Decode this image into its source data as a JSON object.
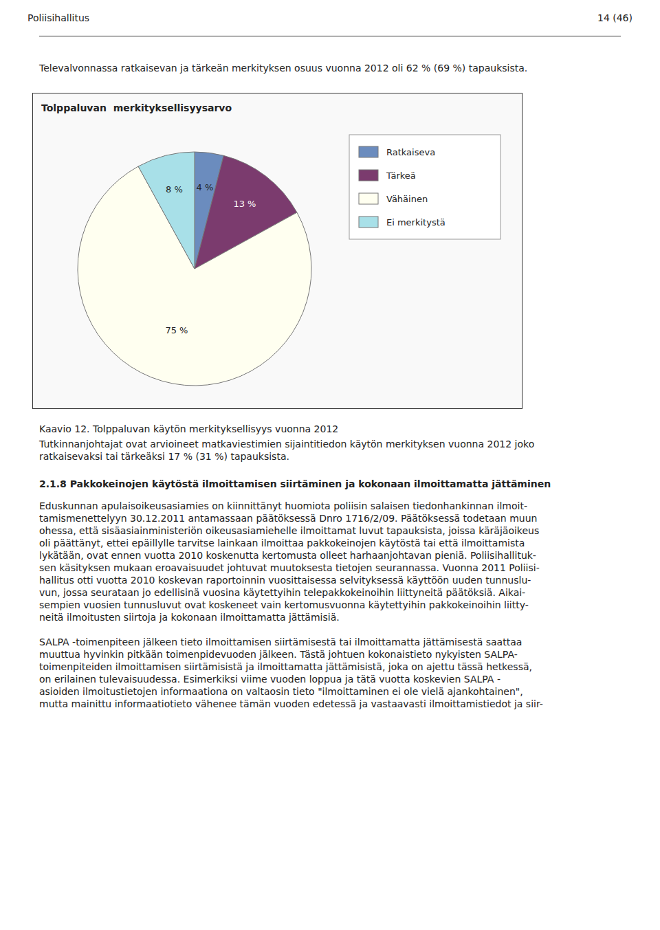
{
  "header_text": "Poliisihallitus",
  "page_number": "14 (46)",
  "intro_text": "Televalvonnassa ratkaisevan ja tärkeän merkityksen osuus vuonna 2012 oli 62 % (69 %) tapauksista.",
  "chart_data": {
    "type": "pie",
    "title": "Tolppaluvan  merkityksellisyysarvo",
    "categories": [
      "Ratkaiseva",
      "Tärkeä",
      "Vähäinen",
      "Ei merkitystä"
    ],
    "values": [
      4,
      13,
      75,
      8
    ],
    "value_labels": [
      "4 %",
      "13 %",
      "75 %",
      "8 %"
    ],
    "colors": [
      "#6B8CBE",
      "#7B3B6E",
      "#FFFFF0",
      "#A8E0E8"
    ],
    "data_labels": true,
    "legend": "right"
  },
  "caption_title": "Kaavio 12. Tolppaluvan käytön merkityksellisyys vuonna 2012",
  "caption_body": [
    "Tutkinnanjohtajat ovat arvioineet matkaviestimien sijaintitiedon käytön merkityksen vuonna 2012 joko",
    "ratkaisevaksi tai tärkeäksi 17 % (31 %) tapauksista."
  ],
  "section_title": "2.1.8 Pakkokeinojen käytöstä ilmoittamisen siirtäminen ja kokonaan ilmoittamatta jättäminen",
  "paragraphs": [
    [
      "Eduskunnan apulaisoikeusasiamies on kiinnittänyt huomiota poliisin salaisen tiedonhankinnan ilmoit-",
      "tamismenettelyyn 30.12.2011 antamassaan päätöksessä Dnro 1716/2/09. Päätöksessä todetaan muun",
      "ohessa, että sisäasiainministeriön oikeusasiamiehelle ilmoittamat luvut tapauksista, joissa käräjäoikeus",
      "oli päättänyt, ettei epäillylle tarvitse lainkaan ilmoittaa pakkokeinojen käytöstä tai että ilmoittamista",
      "lykätään, ovat ennen vuotta 2010 koskenutta kertomusta olleet harhaanjohtavan pieniä. Poliisihallituk-",
      "sen käsityksen mukaan eroavaisuudet johtuvat muutoksesta tietojen seurannassa. Vuonna 2011 Poliisi-",
      "hallitus otti vuotta 2010 koskevan raportoinnin vuosittaisessa selvityksessä käyttöön uuden tunnuslu-",
      "vun, jossa seurataan jo edellisinä vuosina käytettyihin telepakkokeinoihin liittyneitä päätöksiä. Aikai-",
      "sempien vuosien tunnusluvut ovat koskeneet vain kertomusvuonna käytettyihin pakkokeinoihin liitty-",
      "neitä ilmoitusten siirtoja ja kokonaan ilmoittamatta jättämisiä."
    ],
    [
      "SALPA -toimenpiteen jälkeen tieto ilmoittamisen siirtämisestä tai ilmoittamatta jättämisestä saattaa",
      "muuttua hyvinkin pitkään toimenpidevuoden jälkeen. Tästä johtuen kokonaistieto nykyisten SALPA-",
      "toimenpiteiden ilmoittamisen siirtämisistä ja ilmoittamatta jättämisistä, joka on ajettu tässä hetkessä,",
      "on erilainen tulevaisuudessa. Esimerkiksi viime vuoden loppua ja tätä vuotta koskevien SALPA -",
      "asioiden ilmoitustietojen informaationa on valtaosin tieto \"ilmoittaminen ei ole vielä ajankohtainen\",",
      "mutta mainittu informaatiotieto vähenee tämän vuoden edetessä ja vastaavasti ilmoittamistiedot ja siir-"
    ]
  ]
}
